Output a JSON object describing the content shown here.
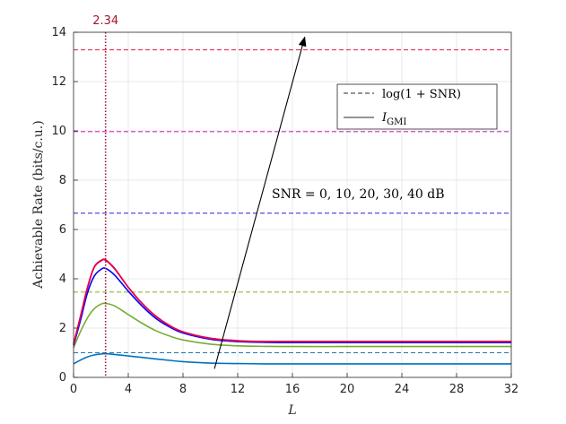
{
  "chart_data": {
    "type": "line",
    "xlabel": "L",
    "ylabel": "Achievable Rate (bits/c.u.)",
    "xlim": [
      0,
      32
    ],
    "ylim": [
      0,
      14
    ],
    "xticks": [
      0,
      4,
      8,
      12,
      16,
      20,
      24,
      28,
      32
    ],
    "yticks": [
      0,
      2,
      4,
      6,
      8,
      10,
      12,
      14
    ],
    "grid": true,
    "legend": {
      "placement": "top-right",
      "entries": [
        {
          "label": "log(1 + SNR)",
          "style": "dashed"
        },
        {
          "label": "I",
          "sub": "GMI",
          "style": "solid"
        }
      ]
    },
    "annotation": {
      "text": "SNR = 0, 10, 20, 30, 40 dB",
      "arrow_from": [
        10.3,
        0.35
      ],
      "arrow_to": [
        16.9,
        13.8
      ]
    },
    "vline": {
      "x": 2.34,
      "label": "2.34",
      "color": "#a2142f"
    },
    "x": [
      0,
      0.5,
      1,
      1.5,
      2,
      2.34,
      3,
      4,
      5,
      6,
      7,
      8,
      10,
      12,
      14,
      16,
      20,
      24,
      28,
      32
    ],
    "capacity_series": [
      {
        "snr": "0 dB",
        "value": 1.0,
        "color": "#1f78b4"
      },
      {
        "snr": "10 dB",
        "value": 3.46,
        "color": "#8fbc30"
      },
      {
        "snr": "20 dB",
        "value": 6.66,
        "color": "#3c3cd6"
      },
      {
        "snr": "30 dB",
        "value": 9.97,
        "color": "#d42bd4"
      },
      {
        "snr": "40 dB",
        "value": 13.29,
        "color": "#e8325a"
      }
    ],
    "series": [
      {
        "snr": "0 dB",
        "color": "#0072bd",
        "values": [
          0.55,
          0.7,
          0.83,
          0.91,
          0.95,
          0.96,
          0.93,
          0.87,
          0.81,
          0.75,
          0.69,
          0.64,
          0.58,
          0.56,
          0.55,
          0.55,
          0.55,
          0.55,
          0.55,
          0.55
        ]
      },
      {
        "snr": "10 dB",
        "color": "#77ac30",
        "values": [
          1.2,
          1.85,
          2.4,
          2.78,
          2.97,
          3.0,
          2.9,
          2.55,
          2.2,
          1.9,
          1.68,
          1.52,
          1.35,
          1.28,
          1.26,
          1.25,
          1.25,
          1.25,
          1.25,
          1.25
        ]
      },
      {
        "snr": "20 dB",
        "color": "#0000ff",
        "values": [
          1.3,
          2.3,
          3.4,
          4.1,
          4.38,
          4.42,
          4.15,
          3.5,
          2.9,
          2.4,
          2.05,
          1.8,
          1.55,
          1.45,
          1.42,
          1.41,
          1.41,
          1.41,
          1.41,
          1.41
        ]
      },
      {
        "snr": "30 dB",
        "color": "#cc00cc",
        "values": [
          1.35,
          2.45,
          3.6,
          4.45,
          4.72,
          4.75,
          4.4,
          3.65,
          3.0,
          2.48,
          2.1,
          1.84,
          1.58,
          1.48,
          1.45,
          1.45,
          1.45,
          1.45,
          1.45,
          1.45
        ]
      },
      {
        "snr": "40 dB",
        "color": "#e8003c",
        "values": [
          1.36,
          2.46,
          3.62,
          4.47,
          4.74,
          4.77,
          4.42,
          3.66,
          3.01,
          2.49,
          2.11,
          1.85,
          1.59,
          1.49,
          1.46,
          1.46,
          1.46,
          1.46,
          1.46,
          1.46
        ]
      }
    ]
  }
}
